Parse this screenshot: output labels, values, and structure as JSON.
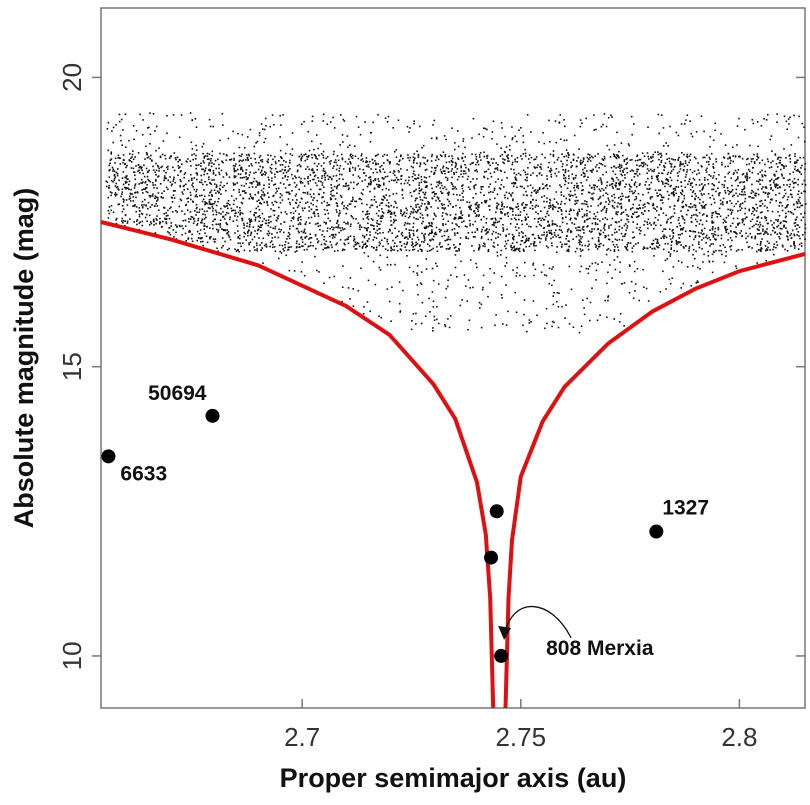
{
  "chart_data": {
    "type": "scatter",
    "title": "",
    "xlabel": "Proper semimajor axis (au)",
    "ylabel": "Absolute magnitude (mag)",
    "xlim": [
      2.654,
      2.815
    ],
    "ylim": [
      9.1,
      21.2
    ],
    "y_inverted": false,
    "grid": false,
    "x_ticks": [
      2.7,
      2.75,
      2.8
    ],
    "x_tick_labels": [
      "2.7",
      "2.75",
      "2.8"
    ],
    "y_ticks": [
      10,
      15,
      20
    ],
    "y_tick_labels": [
      "10",
      "15",
      "20"
    ],
    "family_center_au": 2.7455,
    "background_field": {
      "description_series": "background asteroids (small dots)",
      "a_range": [
        2.655,
        2.815
      ],
      "h_range": [
        15.6,
        19.4
      ],
      "dense_band_h": [
        17.0,
        18.7
      ],
      "point_count": 5200,
      "color": "#111111"
    },
    "v_shape_curves": {
      "color": "#dd1111",
      "left": [
        [
          2.654,
          17.5
        ],
        [
          2.67,
          17.2
        ],
        [
          2.69,
          16.75
        ],
        [
          2.71,
          16.05
        ],
        [
          2.72,
          15.55
        ],
        [
          2.73,
          14.7
        ],
        [
          2.735,
          14.1
        ],
        [
          2.74,
          13.0
        ],
        [
          2.742,
          12.1
        ],
        [
          2.743,
          11.0
        ],
        [
          2.7437,
          9.1
        ]
      ],
      "right": [
        [
          2.7465,
          9.1
        ],
        [
          2.7472,
          11.0
        ],
        [
          2.748,
          12.0
        ],
        [
          2.75,
          13.1
        ],
        [
          2.755,
          14.05
        ],
        [
          2.76,
          14.65
        ],
        [
          2.77,
          15.4
        ],
        [
          2.78,
          15.95
        ],
        [
          2.79,
          16.35
        ],
        [
          2.8,
          16.65
        ],
        [
          2.815,
          16.95
        ]
      ]
    },
    "highlighted": [
      {
        "a": 2.6557,
        "h": 13.45,
        "label": "6633"
      },
      {
        "a": 2.6795,
        "h": 14.15,
        "label": "50694"
      },
      {
        "a": 2.7445,
        "h": 12.5,
        "label": ""
      },
      {
        "a": 2.7432,
        "h": 11.7,
        "label": ""
      },
      {
        "a": 2.7455,
        "h": 10.0,
        "label": "808 Merxia"
      },
      {
        "a": 2.781,
        "h": 12.15,
        "label": "1327"
      }
    ]
  }
}
